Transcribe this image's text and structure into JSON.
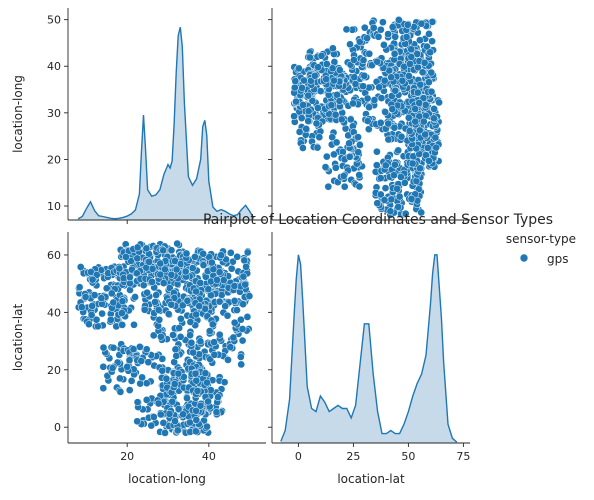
{
  "chart_data": {
    "type": "pairplot",
    "title": "Pairplot of Location Coordinates and Sensor Types",
    "variables": [
      "location-long",
      "location-lat"
    ],
    "legend": {
      "title": "sensor-type",
      "entries": [
        {
          "label": "gps",
          "color": "#1f77b4"
        }
      ],
      "placement": "right"
    },
    "colors": {
      "series": "#1f77b4",
      "fill": "#b3cde3"
    },
    "axes": {
      "long": {
        "range": [
          5.5,
          54
        ],
        "ticks": [
          20,
          40
        ],
        "label": "location-long"
      },
      "long_as_y": {
        "range": [
          7,
          52.5
        ],
        "ticks": [
          10,
          20,
          30,
          40,
          50
        ],
        "label": "location-long"
      },
      "lat": {
        "range": [
          -5.5,
          68
        ],
        "ticks": [
          0,
          20,
          40,
          60
        ],
        "label": "location-lat"
      },
      "lat_as_x": {
        "range": [
          -12,
          78
        ],
        "ticks": [
          0,
          25,
          50,
          75
        ],
        "label": "location-lat"
      }
    },
    "kde_long": {
      "x": [
        8,
        9,
        10,
        11,
        12,
        13,
        14,
        15,
        16,
        17,
        18,
        19,
        20,
        21,
        22,
        23,
        23.5,
        24,
        24.5,
        25,
        26,
        27,
        28,
        29,
        30,
        30.5,
        31,
        31.5,
        32,
        32.5,
        33,
        33.5,
        34,
        35,
        36,
        37,
        38,
        38.5,
        39,
        39.5,
        40,
        41,
        42,
        43,
        44,
        45,
        46,
        47,
        48,
        49,
        50,
        51
      ],
      "y": [
        0.3,
        0.8,
        2.6,
        4.2,
        2.2,
        1.0,
        0.8,
        0.6,
        0.4,
        0.3,
        0.4,
        0.6,
        0.9,
        1.4,
        2.3,
        6.0,
        16.0,
        24.2,
        16.0,
        7.0,
        5.5,
        5.8,
        7.0,
        10.5,
        12.8,
        12.0,
        13.6,
        22.0,
        34.0,
        42.5,
        44.5,
        40.0,
        27.0,
        10.0,
        8.0,
        9.5,
        14.0,
        21.5,
        23.0,
        19.5,
        9.0,
        3.0,
        2.0,
        2.4,
        2.0,
        1.4,
        1.0,
        1.2,
        2.4,
        3.4,
        2.0,
        0.4
      ],
      "ymax": 48
    },
    "kde_lat": {
      "x": [
        -8,
        -6,
        -4,
        -2,
        -1,
        0,
        1,
        2,
        4,
        6,
        8,
        10,
        12,
        14,
        16,
        18,
        20,
        22,
        24,
        26,
        28,
        30,
        32,
        34,
        36,
        38,
        40,
        42,
        44,
        46,
        48,
        50,
        52,
        54,
        56,
        58,
        60,
        61,
        62,
        63,
        64,
        65,
        66,
        68,
        70,
        72
      ],
      "y": [
        0.5,
        4.0,
        14.0,
        40.0,
        52.0,
        60.0,
        57.0,
        45.0,
        18.0,
        11.0,
        10.0,
        15.0,
        13.0,
        10.0,
        11.0,
        12.0,
        11.0,
        11.0,
        8.0,
        12.0,
        25.0,
        38.0,
        38.0,
        22.0,
        10.0,
        3.0,
        3.0,
        4.0,
        3.0,
        3.0,
        6.0,
        10.0,
        15.0,
        19.0,
        22.0,
        28.0,
        44.0,
        54.0,
        60.0,
        60.0,
        50.0,
        40.0,
        26.0,
        6.0,
        1.5,
        0.3
      ],
      "ymax": 66
    },
    "scatter_clusters": [
      {
        "long": [
          8,
          22
        ],
        "lat": [
          35,
          56
        ],
        "n": 150
      },
      {
        "long": [
          18,
          34
        ],
        "lat": [
          50,
          64
        ],
        "n": 140
      },
      {
        "long": [
          24,
          42
        ],
        "lat": [
          40,
          60
        ],
        "n": 160
      },
      {
        "long": [
          34,
          50
        ],
        "lat": [
          42,
          62
        ],
        "n": 140
      },
      {
        "long": [
          26,
          40
        ],
        "lat": [
          20,
          45
        ],
        "n": 110
      },
      {
        "long": [
          28,
          40
        ],
        "lat": [
          -2,
          20
        ],
        "n": 200
      },
      {
        "long": [
          14,
          22
        ],
        "lat": [
          12,
          30
        ],
        "n": 40
      },
      {
        "long": [
          40,
          48
        ],
        "lat": [
          20,
          40
        ],
        "n": 40
      },
      {
        "long": [
          36,
          44
        ],
        "lat": [
          4,
          18
        ],
        "n": 40
      },
      {
        "long": [
          20,
          26
        ],
        "lat": [
          15,
          28
        ],
        "n": 30
      },
      {
        "long": [
          46,
          50
        ],
        "lat": [
          30,
          50
        ],
        "n": 30
      },
      {
        "long": [
          22,
          28
        ],
        "lat": [
          0,
          10
        ],
        "n": 20
      }
    ]
  }
}
